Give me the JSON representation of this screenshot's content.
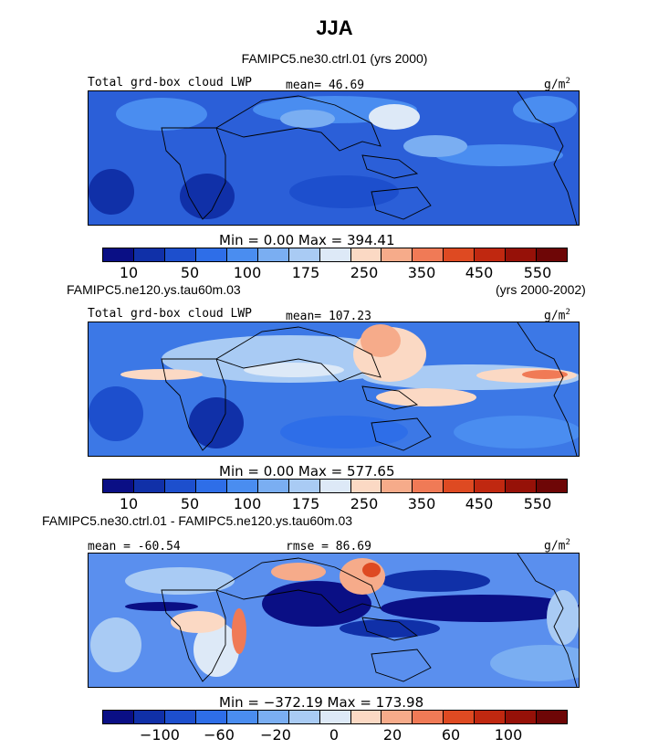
{
  "title": "JJA",
  "panels": [
    {
      "case": "FAMIPC5.ne30.ctrl.01 (yrs 2000)",
      "left_label": "Total grd-box cloud LWP",
      "mid_label": "mean=  46.69",
      "units": "g/m",
      "units_exp": "2",
      "minmax": "Min =    0.00 Max = 394.41",
      "cb_labels": [
        "10",
        "50",
        "100",
        "175",
        "250",
        "350",
        "450",
        "550"
      ]
    },
    {
      "case_left": "FAMIPC5.ne120.ys.tau60m.03",
      "case_right": "(yrs 2000-2002)",
      "left_label": "Total grd-box cloud LWP",
      "mid_label": "mean= 107.23",
      "units": "g/m",
      "units_exp": "2",
      "minmax": "Min =    0.00 Max = 577.65",
      "cb_labels": [
        "10",
        "50",
        "100",
        "175",
        "250",
        "350",
        "450",
        "550"
      ]
    },
    {
      "case": "FAMIPC5.ne30.ctrl.01 - FAMIPC5.ne120.ys.tau60m.03",
      "left_label": "mean = -60.54",
      "mid_label": "rmse =  86.69",
      "units": "g/m",
      "units_exp": "2",
      "minmax": "Min = −372.19 Max = 173.98",
      "cb_labels": [
        "−100",
        "−60",
        "−20",
        "0",
        "20",
        "60",
        "100"
      ]
    }
  ],
  "colors": {
    "seq_colormap": [
      "#0a0f85",
      "#1030a8",
      "#1d4fcd",
      "#2e6ee8",
      "#4a8df0",
      "#7aaef2",
      "#a9cbf4",
      "#dde9f7",
      "#fbd9c4",
      "#f6ab8a",
      "#f07a56",
      "#de4a22",
      "#c02810",
      "#961108",
      "#6e0606"
    ],
    "div_colormap": [
      "#0a0f85",
      "#1030a8",
      "#1d4fcd",
      "#2e6ee8",
      "#4a8df0",
      "#7aaef2",
      "#a9cbf4",
      "#dde9f7",
      "#fbd9c4",
      "#f6ab8a",
      "#f07a56",
      "#de4a22",
      "#c02810",
      "#961108",
      "#6e0606"
    ],
    "panel1_bg": "#2b5fd8",
    "panel2_bg": "#3c78e6",
    "panel3_bg": "#5a8fee"
  },
  "chart_data": [
    {
      "type": "heatmap",
      "title": "FAMIPC5.ne30.ctrl.01 (yrs 2000)",
      "variable": "Total grd-box cloud LWP",
      "units": "g/m2",
      "mean": 46.69,
      "min": 0.0,
      "max": 394.41,
      "contour_levels": [
        10,
        50,
        100,
        175,
        250,
        350,
        450,
        550
      ]
    },
    {
      "type": "heatmap",
      "title": "FAMIPC5.ne120.ys.tau60m.03 (yrs 2000-2002)",
      "variable": "Total grd-box cloud LWP",
      "units": "g/m2",
      "mean": 107.23,
      "min": 0.0,
      "max": 577.65,
      "contour_levels": [
        10,
        50,
        100,
        175,
        250,
        350,
        450,
        550
      ]
    },
    {
      "type": "heatmap",
      "title": "FAMIPC5.ne30.ctrl.01 - FAMIPC5.ne120.ys.tau60m.03",
      "units": "g/m2",
      "mean": -60.54,
      "rmse": 86.69,
      "min": -372.19,
      "max": 173.98,
      "contour_levels": [
        -100,
        -60,
        -20,
        0,
        20,
        60,
        100
      ]
    }
  ]
}
